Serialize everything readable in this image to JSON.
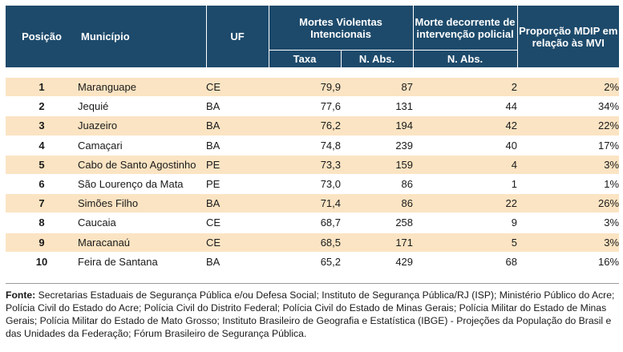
{
  "headers": {
    "posicao": "Posição",
    "municipio": "Município",
    "uf": "UF",
    "mvi": "Mortes Violentas Intencionais",
    "mdip": "Morte decorrente de intervenção policial",
    "proporcao": "Proporção MDIP em relação às MVI",
    "taxa": "Taxa",
    "n_abs": "N. Abs.",
    "mdip_n_abs": "N. Abs."
  },
  "rows": [
    {
      "posicao": "1",
      "municipio": "Maranguape",
      "uf": "CE",
      "taxa": "79,9",
      "n_abs": "87",
      "mdip": "2",
      "proporcao": "2%"
    },
    {
      "posicao": "2",
      "municipio": "Jequié",
      "uf": "BA",
      "taxa": "77,6",
      "n_abs": "131",
      "mdip": "44",
      "proporcao": "34%"
    },
    {
      "posicao": "3",
      "municipio": "Juazeiro",
      "uf": "BA",
      "taxa": "76,2",
      "n_abs": "194",
      "mdip": "42",
      "proporcao": "22%"
    },
    {
      "posicao": "4",
      "municipio": "Camaçari",
      "uf": "BA",
      "taxa": "74,8",
      "n_abs": "239",
      "mdip": "40",
      "proporcao": "17%"
    },
    {
      "posicao": "5",
      "municipio": "Cabo de Santo Agostinho",
      "uf": "PE",
      "taxa": "73,3",
      "n_abs": "159",
      "mdip": "4",
      "proporcao": "3%"
    },
    {
      "posicao": "6",
      "municipio": "São Lourenço da Mata",
      "uf": "PE",
      "taxa": "73,0",
      "n_abs": "86",
      "mdip": "1",
      "proporcao": "1%"
    },
    {
      "posicao": "7",
      "municipio": "Simões Filho",
      "uf": "BA",
      "taxa": "71,4",
      "n_abs": "86",
      "mdip": "22",
      "proporcao": "26%"
    },
    {
      "posicao": "8",
      "municipio": "Caucaia",
      "uf": "CE",
      "taxa": "68,7",
      "n_abs": "258",
      "mdip": "9",
      "proporcao": "3%"
    },
    {
      "posicao": "9",
      "municipio": "Maracanaú",
      "uf": "CE",
      "taxa": "68,5",
      "n_abs": "171",
      "mdip": "5",
      "proporcao": "3%"
    },
    {
      "posicao": "10",
      "municipio": "Feira de Santana",
      "uf": "BA",
      "taxa": "65,2",
      "n_abs": "429",
      "mdip": "68",
      "proporcao": "16%"
    }
  ],
  "source": {
    "label": "Fonte:",
    "text": "Secretarias Estaduais de Segurança Pública e/ou Defesa Social; Instituto de Segurança Pública/RJ (ISP); Ministério Público do Acre; Polícia Civil do Estado do Acre; Polícia Civil do Distrito Federal; Polícia Civil do Estado de Minas Gerais; Polícia Militar do Estado de Minas Gerais; Polícia Militar do Estado de Mato Grosso; Instituto Brasileiro de Geografia e Estatística (IBGE) - Projeções da População do Brasil e das Unidades da Federação; Fórum Brasileiro de Segurança Pública."
  }
}
